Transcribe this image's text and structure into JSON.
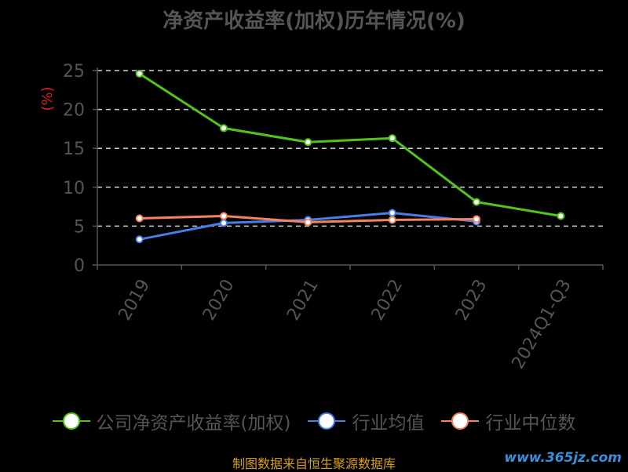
{
  "chart_data": {
    "type": "line",
    "title": "净资产收益率(加权)历年情况(%)",
    "ylabel": "(%)",
    "xlabel": "",
    "categories": [
      "2019",
      "2020",
      "2021",
      "2022",
      "2023",
      "2024Q1-Q3"
    ],
    "ylim": [
      0,
      25
    ],
    "yticks": [
      0,
      5,
      10,
      15,
      20,
      25
    ],
    "grid": true,
    "legend_position": "bottom",
    "series": [
      {
        "name": "公司净资产收益率(加权)",
        "color": "#52c41a",
        "values": [
          24.6,
          17.6,
          15.8,
          16.3,
          8.1,
          6.3
        ]
      },
      {
        "name": "行业均值",
        "color": "#4a7de8",
        "values": [
          3.3,
          5.4,
          5.8,
          6.7,
          5.6,
          null
        ]
      },
      {
        "name": "行业中位数",
        "color": "#f4845f",
        "values": [
          6.0,
          6.3,
          5.5,
          5.8,
          5.9,
          null
        ]
      }
    ]
  },
  "footer": {
    "source": "制图数据来自恒生聚源数据库",
    "watermark": "www.365jz.com"
  }
}
